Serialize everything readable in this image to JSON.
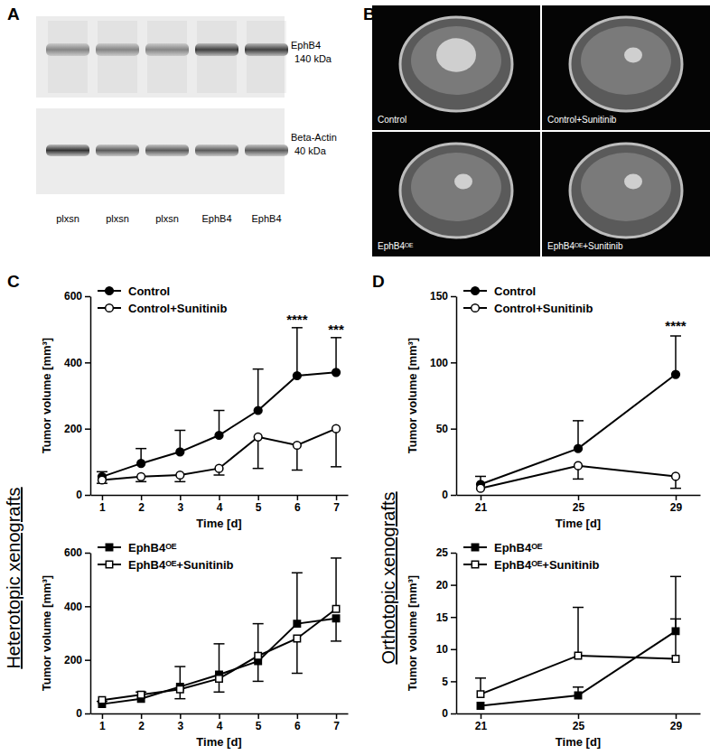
{
  "figure": {
    "panel_labels": [
      "A",
      "B",
      "C",
      "D"
    ],
    "blot": {
      "bands": [
        {
          "label": "EphB4",
          "size": "140 kDa"
        },
        {
          "label": "Beta-Actin",
          "size": "40 kDa"
        }
      ],
      "lanes": [
        "plxsn",
        "plxsn",
        "plxsn",
        "EphB4",
        "EphB4"
      ]
    },
    "mri": [
      "Control",
      "Control+Sunitinib",
      "EphB4ᴼᴱ",
      "EphB4ᴼᴱ+Sunitinib"
    ],
    "side_labels": [
      "Heterotopic xenografts",
      "Orthotopic xenografts"
    ]
  },
  "chart_data": [
    {
      "type": "line",
      "x": [
        1,
        2,
        3,
        4,
        5,
        6,
        7
      ],
      "xlim": [
        0.7,
        7.3
      ],
      "xticks": [
        1,
        2,
        3,
        4,
        5,
        6,
        7
      ],
      "ylim": [
        0,
        600
      ],
      "yticks": [
        0,
        200,
        400,
        600
      ],
      "x_label": "Time [d]",
      "y_label": "Tumor volume [mm³]",
      "legend": "top-left",
      "series": [
        {
          "name": "Control",
          "color": "#000000",
          "marker": "circle",
          "values": [
            55,
            95,
            130,
            180,
            255,
            360,
            370
          ],
          "errors_up": [
            15,
            45,
            65,
            75,
            125,
            145,
            105
          ],
          "errors_down": [
            0,
            0,
            0,
            0,
            0,
            0,
            0
          ]
        },
        {
          "name": "Control+Sunitinib",
          "color": "#000000",
          "marker": "circle-open",
          "values": [
            45,
            55,
            60,
            80,
            175,
            150,
            200
          ],
          "errors_up": [
            0,
            0,
            0,
            0,
            0,
            0,
            0
          ],
          "errors_down": [
            10,
            15,
            20,
            20,
            95,
            75,
            115
          ]
        }
      ],
      "annotations": [
        {
          "text": "****",
          "x": 6,
          "y": 515
        },
        {
          "text": "***",
          "x": 7,
          "y": 485
        }
      ]
    },
    {
      "type": "line",
      "x": [
        21,
        25,
        29
      ],
      "xlim": [
        20,
        30
      ],
      "xticks": [
        21,
        25,
        29
      ],
      "ylim": [
        0,
        150
      ],
      "yticks": [
        0,
        50,
        100,
        150
      ],
      "x_label": "Time [d]",
      "y_label": "Tumor volume [mm³]",
      "legend": "top-left",
      "series": [
        {
          "name": "Control",
          "color": "#000000",
          "marker": "circle",
          "values": [
            8,
            35,
            91
          ],
          "errors_up": [
            6,
            21,
            29
          ],
          "errors_down": [
            0,
            0,
            0
          ]
        },
        {
          "name": "Control+Sunitinib",
          "color": "#000000",
          "marker": "circle-open",
          "values": [
            5,
            22,
            14
          ],
          "errors_up": [
            0,
            0,
            0
          ],
          "errors_down": [
            0,
            10,
            9
          ]
        }
      ],
      "annotations": [
        {
          "text": "****",
          "x": 29,
          "y": 124
        }
      ]
    },
    {
      "type": "line",
      "x": [
        1,
        2,
        3,
        4,
        5,
        6,
        7
      ],
      "xlim": [
        0.7,
        7.3
      ],
      "xticks": [
        1,
        2,
        3,
        4,
        5,
        6,
        7
      ],
      "ylim": [
        0,
        600
      ],
      "yticks": [
        0,
        200,
        400,
        600
      ],
      "x_label": "Time [d]",
      "y_label": "Tumor volume [mm³]",
      "legend": "top-left",
      "series": [
        {
          "name": "EphB4ᴼᴱ",
          "color": "#000000",
          "marker": "square",
          "values": [
            35,
            55,
            100,
            145,
            195,
            335,
            355
          ],
          "errors_up": [
            10,
            0,
            0,
            0,
            0,
            190,
            0
          ],
          "errors_down": [
            0,
            0,
            45,
            0,
            75,
            0,
            85
          ]
        },
        {
          "name": "EphB4ᴼᴱ+Sunitinib",
          "color": "#000000",
          "marker": "square-open",
          "values": [
            50,
            70,
            90,
            130,
            215,
            280,
            390
          ],
          "errors_up": [
            0,
            10,
            85,
            130,
            120,
            0,
            190
          ],
          "errors_down": [
            0,
            0,
            0,
            50,
            0,
            130,
            0
          ]
        }
      ]
    },
    {
      "type": "line",
      "x": [
        21,
        25,
        29
      ],
      "xlim": [
        20,
        30
      ],
      "xticks": [
        21,
        25,
        29
      ],
      "ylim": [
        0,
        25
      ],
      "yticks": [
        0,
        5,
        10,
        15,
        20,
        25
      ],
      "x_label": "Time [d]",
      "y_label": "Tumor volume [mm³]",
      "legend": "top-left",
      "series": [
        {
          "name": "EphB4ᴼᴱ",
          "color": "#000000",
          "marker": "square",
          "values": [
            1.2,
            2.8,
            12.8
          ],
          "errors_up": [
            0,
            1.3,
            8.5
          ],
          "errors_down": [
            0,
            0,
            0
          ]
        },
        {
          "name": "EphB4ᴼᴱ+Sunitinib",
          "color": "#000000",
          "marker": "square-open",
          "values": [
            3,
            9,
            8.5
          ],
          "errors_up": [
            2.5,
            7.5,
            6.2
          ],
          "errors_down": [
            0,
            0,
            0
          ]
        }
      ]
    }
  ]
}
